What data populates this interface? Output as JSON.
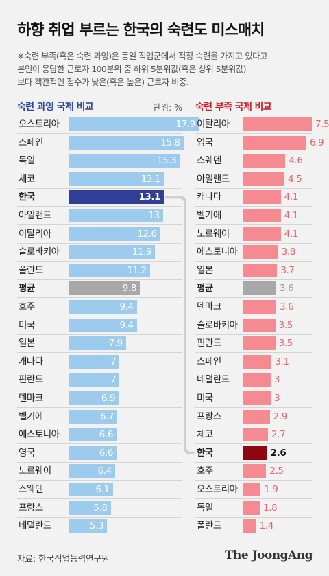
{
  "title": "하향 취업 부르는 한국의 숙련도 미스매치",
  "note": {
    "lines": [
      "※숙련 부족(혹은 숙련 과잉)은 동일 직업군에서 적정 숙련을 가지고 있다고",
      "본인이 응답한 근로자 100분위 중 하위 5분위값(혹은 상위 5분위값)",
      "보다 객관적인 점수가 낮은(혹은 높은) 근로자 비중."
    ]
  },
  "unit_label": "단위: %",
  "source": "자료: 한국직업능력연구원",
  "brand": "The JoongAng",
  "colors": {
    "left_bar": "#9ccbee",
    "left_highlight": "#2e3f95",
    "average": "#a8a8a8",
    "right_bar": "#f58b91",
    "right_highlight": "#8e0610",
    "right_text": "#e86670",
    "left_title": "#2a4599",
    "right_title": "#c8212d"
  },
  "chart_data": [
    {
      "type": "bar",
      "title": "숙련 과잉 국제 비교",
      "ylim": [
        0,
        17.9
      ],
      "categories": [
        "오스트리아",
        "스페인",
        "독일",
        "체코",
        "한국",
        "아일랜드",
        "이탈리아",
        "슬로바키아",
        "폴란드",
        "평균",
        "호주",
        "미국",
        "일본",
        "캐나다",
        "핀란드",
        "덴마크",
        "벨기에",
        "에스토니아",
        "영국",
        "노르웨이",
        "스웨덴",
        "프랑스",
        "네덜란드"
      ],
      "values": [
        17.9,
        15.8,
        15.3,
        13.1,
        13.1,
        13,
        12.6,
        11.9,
        11.2,
        9.8,
        9.4,
        9.4,
        7.9,
        7,
        7,
        6.9,
        6.7,
        6.6,
        6.6,
        6.4,
        6.1,
        5.8,
        5.3
      ],
      "labels": [
        "17.9",
        "15.8",
        "15.3",
        "13.1",
        "13.1",
        "13",
        "12.6",
        "11.9",
        "11.2",
        "9.8",
        "9.4",
        "9.4",
        "7.9",
        "7",
        "7",
        "6.9",
        "6.7",
        "6.6",
        "6.6",
        "6.4",
        "6.1",
        "5.8",
        "5.3"
      ],
      "highlight": "한국",
      "average": "평균"
    },
    {
      "type": "bar",
      "title": "숙련 부족 국제 비교",
      "ylim": [
        0,
        7.5
      ],
      "categories": [
        "이탈리아",
        "영국",
        "스웨덴",
        "아일랜드",
        "캐나다",
        "벨기에",
        "노르웨이",
        "에스토니아",
        "일본",
        "평균",
        "덴마크",
        "슬로바키아",
        "핀란드",
        "스페인",
        "네덜란드",
        "미국",
        "프랑스",
        "체코",
        "한국",
        "호주",
        "오스트리아",
        "독일",
        "폴란드"
      ],
      "values": [
        7.5,
        6.9,
        4.6,
        4.5,
        4.1,
        4.1,
        4.1,
        3.8,
        3.7,
        3.6,
        3.6,
        3.5,
        3.5,
        3.1,
        3,
        3,
        2.9,
        2.7,
        2.6,
        2.5,
        1.9,
        1.8,
        1.4
      ],
      "labels": [
        "7.5",
        "6.9",
        "4.6",
        "4.5",
        "4.1",
        "4.1",
        "4.1",
        "3.8",
        "3.7",
        "3.6",
        "3.6",
        "3.5",
        "3.5",
        "3.1",
        "3",
        "3",
        "2.9",
        "2.7",
        "2.6",
        "2.5",
        "1.9",
        "1.8",
        "1.4"
      ],
      "highlight": "한국",
      "average": "평균"
    }
  ]
}
